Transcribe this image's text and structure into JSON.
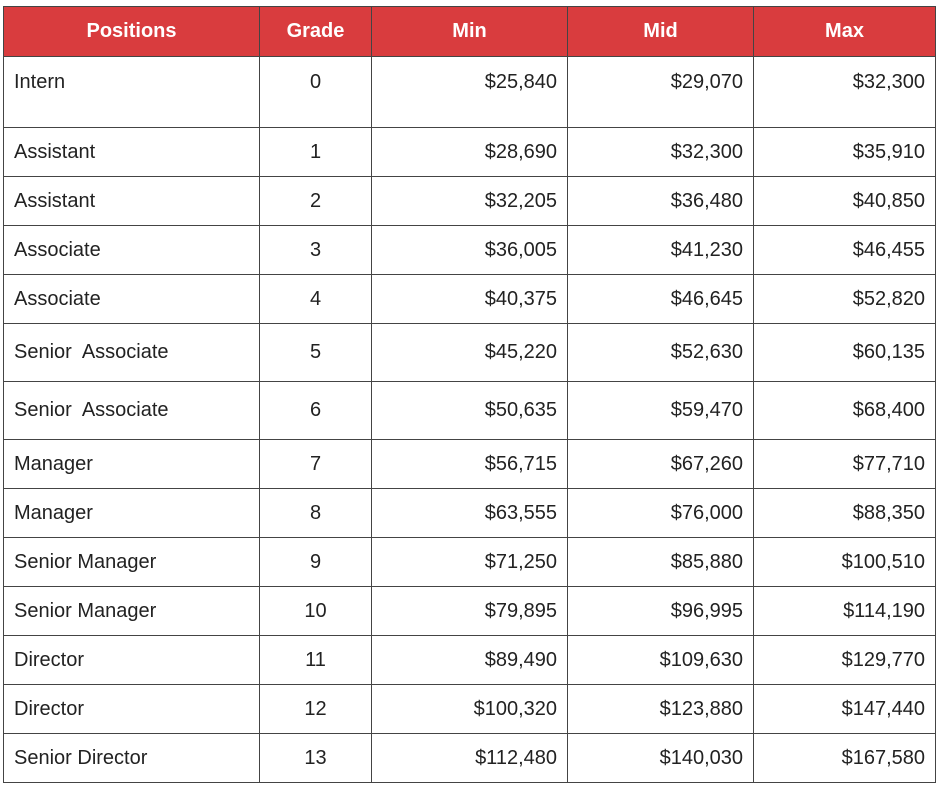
{
  "table": {
    "headers": {
      "positions": "Positions",
      "grade": "Grade",
      "min": "Min",
      "mid": "Mid",
      "max": "Max"
    },
    "rows": [
      {
        "position": "Intern",
        "grade": "0",
        "min": "$25,840",
        "mid": "$29,070",
        "max": "$32,300"
      },
      {
        "position": "Assistant",
        "grade": "1",
        "min": "$28,690",
        "mid": "$32,300",
        "max": "$35,910"
      },
      {
        "position": "Assistant",
        "grade": "2",
        "min": "$32,205",
        "mid": "$36,480",
        "max": "$40,850"
      },
      {
        "position": "Associate",
        "grade": "3",
        "min": "$36,005",
        "mid": "$41,230",
        "max": "$46,455"
      },
      {
        "position": "Associate",
        "grade": "4",
        "min": "$40,375",
        "mid": "$46,645",
        "max": "$52,820"
      },
      {
        "position": "Senior  Associate",
        "grade": "5",
        "min": "$45,220",
        "mid": "$52,630",
        "max": "$60,135"
      },
      {
        "position": "Senior  Associate",
        "grade": "6",
        "min": "$50,635",
        "mid": "$59,470",
        "max": "$68,400"
      },
      {
        "position": "Manager",
        "grade": "7",
        "min": "$56,715",
        "mid": "$67,260",
        "max": "$77,710"
      },
      {
        "position": "Manager",
        "grade": "8",
        "min": "$63,555",
        "mid": "$76,000",
        "max": "$88,350"
      },
      {
        "position": "Senior Manager",
        "grade": "9",
        "min": "$71,250",
        "mid": "$85,880",
        "max": "$100,510"
      },
      {
        "position": "Senior Manager",
        "grade": "10",
        "min": "$79,895",
        "mid": "$96,995",
        "max": "$114,190"
      },
      {
        "position": "Director",
        "grade": "11",
        "min": "$89,490",
        "mid": "$109,630",
        "max": "$129,770"
      },
      {
        "position": "Director",
        "grade": "12",
        "min": "$100,320",
        "mid": "$123,880",
        "max": "$147,440"
      },
      {
        "position": "Senior Director",
        "grade": "13",
        "min": "$112,480",
        "mid": "$140,030",
        "max": "$167,580"
      }
    ]
  },
  "colors": {
    "header_background": "#d93c3e",
    "header_text": "#ffffff",
    "border": "#444444",
    "body_text": "#222222"
  }
}
